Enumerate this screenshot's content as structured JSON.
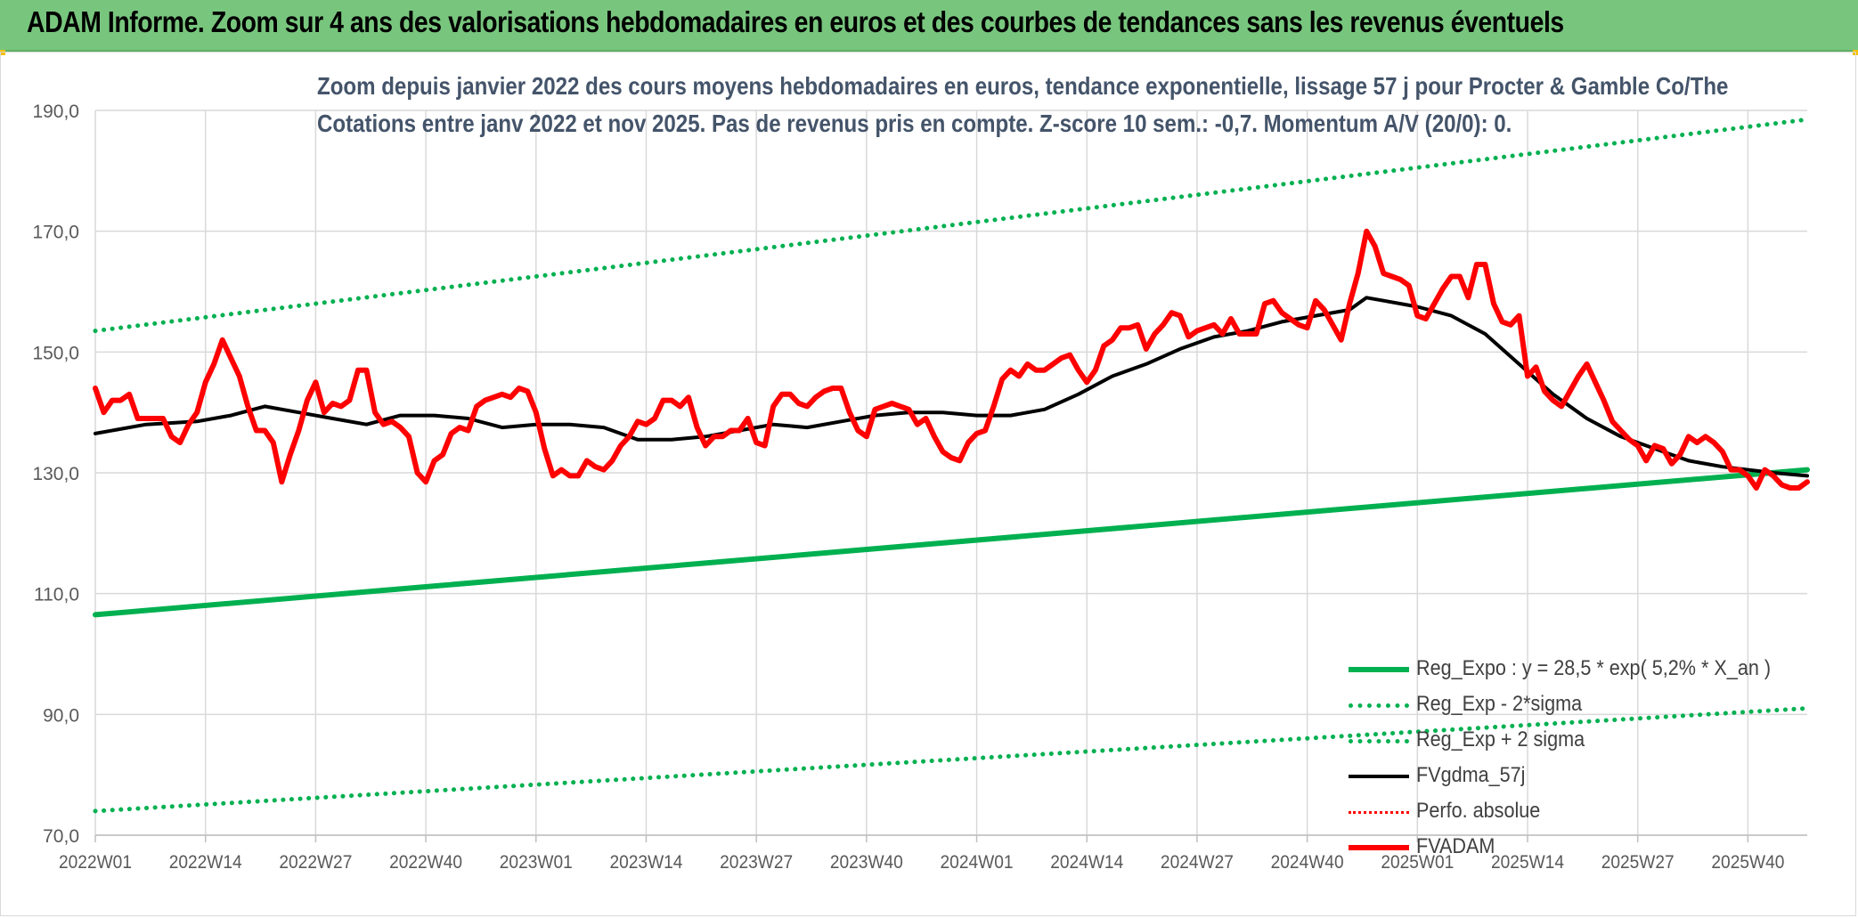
{
  "banner": {
    "title": "ADAM Informe. Zoom sur 4 ans des valorisations hebdomadaires en euros et des courbes de tendances sans les revenus éventuels"
  },
  "chart_data": {
    "type": "line",
    "title": "Zoom depuis janvier 2022 des cours moyens hebdomadaires en euros, tendance exponentielle, lissage 57 j pour Procter & Gamble Co/The",
    "subtitle": "Cotations entre janv 2022 et nov 2025. Pas de revenus pris en compte. Z-score 10 sem.: -0,7. Momentum A/V (20/0): 0.",
    "xlabel": "",
    "ylabel": "",
    "ylim": [
      70,
      190
    ],
    "yticks": [
      "70,0",
      "90,0",
      "110,0",
      "130,0",
      "150,0",
      "170,0",
      "190,0"
    ],
    "xticks": [
      "2022W01",
      "2022W14",
      "2022W27",
      "2022W40",
      "2023W01",
      "2023W14",
      "2023W27",
      "2023W40",
      "2024W01",
      "2024W14",
      "2024W27",
      "2024W40",
      "2025W01",
      "2025W14",
      "2025W27",
      "2025W40"
    ],
    "xlim": [
      0,
      202
    ],
    "grid": true,
    "legend_position": "bottom-right",
    "series": [
      {
        "name": "Reg_Expo : y = 28,5 * exp( 5,2% *  X_an )",
        "color": "#00b050",
        "style": "solid",
        "width": 6,
        "points": [
          [
            0,
            106.5
          ],
          [
            202,
            130.5
          ]
        ]
      },
      {
        "name": "Reg_Exp - 2*sigma",
        "color": "#00b050",
        "style": "dotted",
        "width": 5,
        "points": [
          [
            0,
            74.0
          ],
          [
            202,
            91.0
          ]
        ]
      },
      {
        "name": "Reg_Exp + 2 sigma",
        "color": "#00b050",
        "style": "dotted",
        "width": 5,
        "points": [
          [
            0,
            153.5
          ],
          [
            202,
            188.5
          ]
        ]
      },
      {
        "name": "FVgdma_57j",
        "color": "#000000",
        "style": "solid",
        "width": 4,
        "points": [
          [
            0,
            136.5
          ],
          [
            6,
            138
          ],
          [
            12,
            138.5
          ],
          [
            16,
            139.5
          ],
          [
            20,
            141
          ],
          [
            24,
            140
          ],
          [
            28,
            139
          ],
          [
            32,
            138
          ],
          [
            36,
            139.5
          ],
          [
            40,
            139.5
          ],
          [
            44,
            139
          ],
          [
            48,
            137.5
          ],
          [
            52,
            138
          ],
          [
            56,
            138
          ],
          [
            60,
            137.5
          ],
          [
            64,
            135.5
          ],
          [
            68,
            135.5
          ],
          [
            72,
            136
          ],
          [
            76,
            137
          ],
          [
            80,
            138
          ],
          [
            84,
            137.5
          ],
          [
            88,
            138.5
          ],
          [
            92,
            139.5
          ],
          [
            96,
            140
          ],
          [
            100,
            140
          ],
          [
            104,
            139.5
          ],
          [
            108,
            139.5
          ],
          [
            112,
            140.5
          ],
          [
            116,
            143
          ],
          [
            120,
            146
          ],
          [
            124,
            148
          ],
          [
            128,
            150.5
          ],
          [
            132,
            152.5
          ],
          [
            136,
            153.5
          ],
          [
            140,
            155
          ],
          [
            144,
            156
          ],
          [
            148,
            157
          ],
          [
            150,
            159
          ],
          [
            152,
            158.5
          ],
          [
            156,
            157.5
          ],
          [
            160,
            156
          ],
          [
            164,
            153
          ],
          [
            168,
            148
          ],
          [
            172,
            143
          ],
          [
            176,
            139
          ],
          [
            180,
            136
          ],
          [
            184,
            134
          ],
          [
            188,
            132
          ],
          [
            192,
            131
          ],
          [
            198,
            130
          ],
          [
            202,
            129.5
          ]
        ]
      },
      {
        "name": "Perfo. absolue",
        "color": "#ff0000",
        "style": "dotted",
        "width": 3,
        "points": []
      },
      {
        "name": "FVADAM",
        "color": "#ff0000",
        "style": "solid",
        "width": 6,
        "points": [
          [
            0,
            144
          ],
          [
            1,
            140
          ],
          [
            2,
            142
          ],
          [
            3,
            142
          ],
          [
            4,
            143
          ],
          [
            5,
            139
          ],
          [
            6,
            139
          ],
          [
            7,
            139
          ],
          [
            8,
            139
          ],
          [
            9,
            136
          ],
          [
            10,
            135
          ],
          [
            11,
            138
          ],
          [
            12,
            140
          ],
          [
            13,
            145
          ],
          [
            14,
            148
          ],
          [
            15,
            152
          ],
          [
            16,
            149
          ],
          [
            17,
            146
          ],
          [
            18,
            141
          ],
          [
            19,
            137
          ],
          [
            20,
            137
          ],
          [
            21,
            135
          ],
          [
            22,
            128.5
          ],
          [
            23,
            133
          ],
          [
            24,
            137
          ],
          [
            25,
            142
          ],
          [
            26,
            145
          ],
          [
            27,
            140
          ],
          [
            28,
            141.5
          ],
          [
            29,
            141
          ],
          [
            30,
            142
          ],
          [
            31,
            147
          ],
          [
            32,
            147
          ],
          [
            33,
            140
          ],
          [
            34,
            138
          ],
          [
            35,
            138.5
          ],
          [
            36,
            137.5
          ],
          [
            37,
            136
          ],
          [
            38,
            130
          ],
          [
            39,
            128.5
          ],
          [
            40,
            132
          ],
          [
            41,
            133
          ],
          [
            42,
            136.5
          ],
          [
            43,
            137.5
          ],
          [
            44,
            137
          ],
          [
            45,
            141
          ],
          [
            46,
            142
          ],
          [
            47,
            142.5
          ],
          [
            48,
            143
          ],
          [
            49,
            142.5
          ],
          [
            50,
            144
          ],
          [
            51,
            143.5
          ],
          [
            52,
            140
          ],
          [
            53,
            134
          ],
          [
            54,
            129.5
          ],
          [
            55,
            130.5
          ],
          [
            56,
            129.5
          ],
          [
            57,
            129.5
          ],
          [
            58,
            132
          ],
          [
            59,
            131
          ],
          [
            60,
            130.5
          ],
          [
            61,
            132
          ],
          [
            62,
            134.5
          ],
          [
            63,
            136
          ],
          [
            64,
            138.5
          ],
          [
            65,
            138
          ],
          [
            66,
            139
          ],
          [
            67,
            142
          ],
          [
            68,
            142
          ],
          [
            69,
            141
          ],
          [
            70,
            142.5
          ],
          [
            71,
            137.5
          ],
          [
            72,
            134.5
          ],
          [
            73,
            136
          ],
          [
            74,
            136
          ],
          [
            75,
            137
          ],
          [
            76,
            137
          ],
          [
            77,
            139
          ],
          [
            78,
            135
          ],
          [
            79,
            134.5
          ],
          [
            80,
            141
          ],
          [
            81,
            143
          ],
          [
            82,
            143
          ],
          [
            83,
            141.5
          ],
          [
            84,
            141
          ],
          [
            85,
            142.5
          ],
          [
            86,
            143.5
          ],
          [
            87,
            144
          ],
          [
            88,
            144
          ],
          [
            89,
            140
          ],
          [
            90,
            137
          ],
          [
            91,
            136
          ],
          [
            92,
            140.5
          ],
          [
            93,
            141
          ],
          [
            94,
            141.5
          ],
          [
            95,
            141
          ],
          [
            96,
            140.5
          ],
          [
            97,
            138
          ],
          [
            98,
            139
          ],
          [
            99,
            136
          ],
          [
            100,
            133.5
          ],
          [
            101,
            132.5
          ],
          [
            102,
            132
          ],
          [
            103,
            135
          ],
          [
            104,
            136.5
          ],
          [
            105,
            137
          ],
          [
            106,
            141
          ],
          [
            107,
            145.5
          ],
          [
            108,
            147
          ],
          [
            109,
            146
          ],
          [
            110,
            148
          ],
          [
            111,
            147
          ],
          [
            112,
            147
          ],
          [
            113,
            148
          ],
          [
            114,
            149
          ],
          [
            115,
            149.5
          ],
          [
            116,
            147
          ],
          [
            117,
            145
          ],
          [
            118,
            147
          ],
          [
            119,
            151
          ],
          [
            120,
            152
          ],
          [
            121,
            154
          ],
          [
            122,
            154
          ],
          [
            123,
            154.5
          ],
          [
            124,
            150.5
          ],
          [
            125,
            153
          ],
          [
            126,
            154.5
          ],
          [
            127,
            156.5
          ],
          [
            128,
            156
          ],
          [
            129,
            152.5
          ],
          [
            130,
            153.5
          ],
          [
            131,
            154
          ],
          [
            132,
            154.5
          ],
          [
            133,
            153
          ],
          [
            134,
            155.5
          ],
          [
            135,
            153
          ],
          [
            136,
            153
          ],
          [
            137,
            153
          ],
          [
            138,
            158
          ],
          [
            139,
            158.5
          ],
          [
            140,
            156.5
          ],
          [
            141,
            155.5
          ],
          [
            142,
            154.5
          ],
          [
            143,
            154
          ],
          [
            144,
            158.5
          ],
          [
            145,
            157
          ],
          [
            146,
            154.5
          ],
          [
            147,
            152
          ],
          [
            148,
            158
          ],
          [
            149,
            163
          ],
          [
            150,
            170
          ],
          [
            151,
            167.5
          ],
          [
            152,
            163
          ],
          [
            153,
            162.5
          ],
          [
            154,
            162
          ],
          [
            155,
            161
          ],
          [
            156,
            156
          ],
          [
            157,
            155.5
          ],
          [
            158,
            158
          ],
          [
            159,
            160.5
          ],
          [
            160,
            162.5
          ],
          [
            161,
            162.5
          ],
          [
            162,
            159
          ],
          [
            163,
            164.5
          ],
          [
            164,
            164.5
          ],
          [
            165,
            158
          ],
          [
            166,
            155
          ],
          [
            167,
            154.5
          ],
          [
            168,
            156
          ],
          [
            169,
            146
          ],
          [
            170,
            147.5
          ],
          [
            171,
            143.5
          ],
          [
            172,
            142
          ],
          [
            173,
            141
          ],
          [
            174,
            143.5
          ],
          [
            175,
            146
          ],
          [
            176,
            148
          ],
          [
            177,
            145
          ],
          [
            178,
            142
          ],
          [
            179,
            138.5
          ],
          [
            180,
            137
          ],
          [
            181,
            135.5
          ],
          [
            182,
            134.5
          ],
          [
            183,
            132
          ],
          [
            184,
            134.5
          ],
          [
            185,
            134
          ],
          [
            186,
            131.5
          ],
          [
            187,
            133
          ],
          [
            188,
            136
          ],
          [
            189,
            135
          ],
          [
            190,
            136
          ],
          [
            191,
            135
          ],
          [
            192,
            133.5
          ],
          [
            193,
            130.5
          ],
          [
            194,
            130.5
          ],
          [
            195,
            129.5
          ],
          [
            196,
            127.5
          ],
          [
            197,
            130.5
          ],
          [
            198,
            129.5
          ],
          [
            199,
            128
          ],
          [
            200,
            127.5
          ],
          [
            201,
            127.5
          ],
          [
            202,
            128.5
          ]
        ]
      }
    ]
  }
}
